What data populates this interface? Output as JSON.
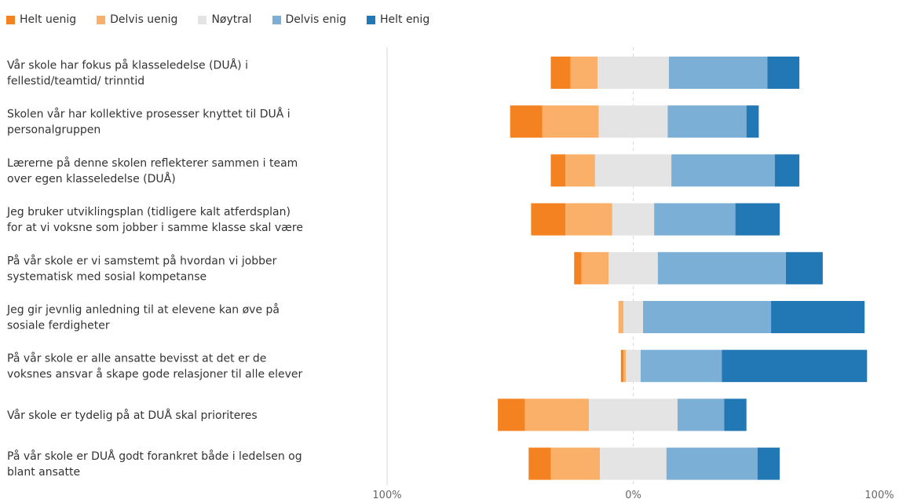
{
  "colors": {
    "helt_uenig": "#f58220",
    "delvis_uenig": "#fbb069",
    "noytral": "#e4e4e4",
    "delvis_enig": "#7bafd6",
    "helt_enig": "#2277b5",
    "axis": "#999999",
    "gridline": "#d9d9d9"
  },
  "chart_data": {
    "type": "bar",
    "orientation": "horizontal",
    "stacking": "diverging",
    "xlim": [
      -100,
      100
    ],
    "x_ticks": [
      "100%",
      "0%",
      "100%"
    ],
    "legend_position": "top-left",
    "grid": false,
    "categories": [
      [
        "Vår skole har fokus på klasseledelse (DUÅ) i",
        "fellestid/teamtid/ trinntid"
      ],
      [
        "Skolen vår har kollektive prosesser knyttet til DUÅ i",
        "personalgruppen"
      ],
      [
        "Lærerne på denne skolen reflekterer sammen i team",
        "over egen klasseledelse (DUÅ)"
      ],
      [
        "Jeg bruker utviklingsplan (tidligere kalt atferdsplan)",
        "for at vi voksne som jobber i samme klasse skal være"
      ],
      [
        "På vår skole er vi samstemt på hvordan vi jobber",
        "systematisk med sosial kompetanse"
      ],
      [
        "Jeg gir jevnlig anledning til at elevene kan øve på",
        "sosiale ferdigheter"
      ],
      [
        "På vår skole er alle ansatte bevisst at det er de",
        "voksnes ansvar å skape gode relasjoner til alle elever"
      ],
      [
        "Vår skole er tydelig på at DUÅ skal prioriteres"
      ],
      [
        "På vår skole er DUÅ godt forankret både i ledelsen og",
        "blant ansatte"
      ]
    ],
    "series": [
      {
        "name": "Helt uenig",
        "color_key": "helt_uenig",
        "values": [
          8,
          13,
          6,
          14,
          3,
          0,
          1,
          11,
          9
        ]
      },
      {
        "name": "Delvis uenig",
        "color_key": "delvis_uenig",
        "values": [
          11,
          23,
          12,
          19,
          11,
          2,
          1,
          26,
          20
        ]
      },
      {
        "name": "Nøytral",
        "color_key": "noytral",
        "values": [
          29,
          28,
          31,
          17,
          20,
          8,
          6,
          36,
          27
        ]
      },
      {
        "name": "Delvis enig",
        "color_key": "delvis_enig",
        "values": [
          40,
          32,
          42,
          33,
          52,
          52,
          33,
          19,
          37
        ]
      },
      {
        "name": "Helt enig",
        "color_key": "helt_enig",
        "values": [
          13,
          5,
          10,
          18,
          15,
          38,
          59,
          9,
          9
        ]
      }
    ]
  }
}
